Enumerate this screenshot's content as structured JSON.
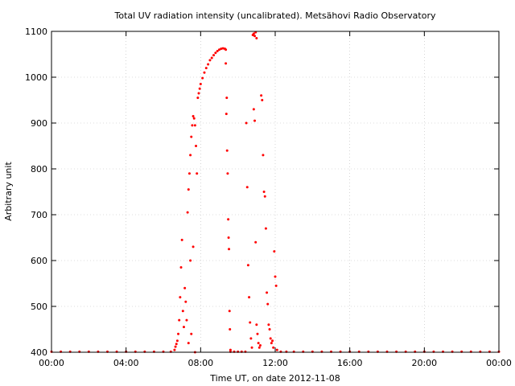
{
  "chart_data": {
    "type": "scatter",
    "title": "Total UV radiation intensity (uncalibrated). Metsähovi Radio Observatory",
    "xlabel": "Time UT, on date 2012-11-08",
    "ylabel": "Arbitrary unit",
    "x_unit": "hours UT",
    "xlim": [
      0,
      24
    ],
    "ylim": [
      400,
      1100
    ],
    "x_ticks": [
      0,
      4,
      8,
      12,
      16,
      20,
      24
    ],
    "x_tick_labels": [
      "00:00",
      "04:00",
      "08:00",
      "12:00",
      "16:00",
      "20:00",
      "00:00"
    ],
    "y_ticks": [
      400,
      500,
      600,
      700,
      800,
      900,
      1000,
      1100
    ],
    "y_tick_labels": [
      "400",
      "500",
      "600",
      "700",
      "800",
      "900",
      "1000",
      "1100"
    ],
    "grid": true,
    "series": [
      {
        "color": "#ff0000",
        "points": [
          [
            0.0,
            401
          ],
          [
            0.5,
            401
          ],
          [
            1.0,
            401
          ],
          [
            1.5,
            401
          ],
          [
            2.0,
            401
          ],
          [
            2.5,
            401
          ],
          [
            3.0,
            401
          ],
          [
            3.5,
            401
          ],
          [
            4.0,
            401
          ],
          [
            4.5,
            401
          ],
          [
            5.0,
            401
          ],
          [
            5.5,
            401
          ],
          [
            6.0,
            401
          ],
          [
            6.4,
            401
          ],
          [
            6.6,
            405
          ],
          [
            6.65,
            412
          ],
          [
            6.7,
            418
          ],
          [
            6.75,
            425
          ],
          [
            6.8,
            440
          ],
          [
            6.85,
            470
          ],
          [
            6.9,
            520
          ],
          [
            6.95,
            585
          ],
          [
            7.0,
            645
          ],
          [
            7.05,
            490
          ],
          [
            7.1,
            455
          ],
          [
            7.15,
            540
          ],
          [
            7.2,
            510
          ],
          [
            7.25,
            470
          ],
          [
            7.3,
            705
          ],
          [
            7.35,
            755
          ],
          [
            7.4,
            790
          ],
          [
            7.45,
            830
          ],
          [
            7.5,
            870
          ],
          [
            7.55,
            895
          ],
          [
            7.6,
            915
          ],
          [
            7.65,
            910
          ],
          [
            7.7,
            895
          ],
          [
            7.75,
            850
          ],
          [
            7.8,
            790
          ],
          [
            7.6,
            630
          ],
          [
            7.5,
            440
          ],
          [
            7.35,
            420
          ],
          [
            7.45,
            600
          ],
          [
            7.7,
            400
          ],
          [
            7.85,
            955
          ],
          [
            7.9,
            965
          ],
          [
            7.95,
            975
          ],
          [
            8.0,
            985
          ],
          [
            8.1,
            998
          ],
          [
            8.2,
            1010
          ],
          [
            8.3,
            1020
          ],
          [
            8.4,
            1028
          ],
          [
            8.5,
            1037
          ],
          [
            8.6,
            1042
          ],
          [
            8.7,
            1048
          ],
          [
            8.8,
            1053
          ],
          [
            8.9,
            1057
          ],
          [
            9.0,
            1060
          ],
          [
            9.1,
            1062
          ],
          [
            9.2,
            1063
          ],
          [
            9.3,
            1062
          ],
          [
            9.35,
            1060
          ],
          [
            9.35,
            1030
          ],
          [
            9.4,
            955
          ],
          [
            9.38,
            920
          ],
          [
            9.42,
            840
          ],
          [
            9.45,
            790
          ],
          [
            9.48,
            690
          ],
          [
            9.5,
            650
          ],
          [
            9.52,
            625
          ],
          [
            9.55,
            490
          ],
          [
            9.57,
            450
          ],
          [
            9.6,
            405
          ],
          [
            9.6,
            401
          ],
          [
            9.8,
            401
          ],
          [
            10.0,
            401
          ],
          [
            10.2,
            401
          ],
          [
            10.4,
            401
          ],
          [
            10.45,
            900
          ],
          [
            10.5,
            760
          ],
          [
            10.55,
            590
          ],
          [
            10.6,
            520
          ],
          [
            10.65,
            465
          ],
          [
            10.7,
            430
          ],
          [
            10.75,
            410
          ],
          [
            10.8,
            1092
          ],
          [
            10.85,
            1095
          ],
          [
            10.9,
            1090
          ],
          [
            10.95,
            1098
          ],
          [
            11.0,
            1085
          ],
          [
            10.85,
            930
          ],
          [
            10.9,
            905
          ],
          [
            10.95,
            640
          ],
          [
            11.0,
            460
          ],
          [
            11.05,
            440
          ],
          [
            11.1,
            420
          ],
          [
            11.15,
            410
          ],
          [
            11.2,
            415
          ],
          [
            11.25,
            960
          ],
          [
            11.3,
            950
          ],
          [
            11.35,
            830
          ],
          [
            11.4,
            750
          ],
          [
            11.45,
            740
          ],
          [
            11.5,
            670
          ],
          [
            11.55,
            530
          ],
          [
            11.6,
            505
          ],
          [
            11.65,
            460
          ],
          [
            11.7,
            450
          ],
          [
            11.75,
            430
          ],
          [
            11.8,
            420
          ],
          [
            11.85,
            425
          ],
          [
            11.9,
            410
          ],
          [
            11.95,
            620
          ],
          [
            12.0,
            565
          ],
          [
            12.05,
            545
          ],
          [
            12.1,
            405
          ],
          [
            12.3,
            401
          ],
          [
            12.6,
            401
          ],
          [
            13.0,
            401
          ],
          [
            13.5,
            401
          ],
          [
            14.0,
            401
          ],
          [
            14.5,
            401
          ],
          [
            15.0,
            401
          ],
          [
            15.5,
            401
          ],
          [
            16.0,
            401
          ],
          [
            16.5,
            401
          ],
          [
            17.0,
            401
          ],
          [
            17.5,
            401
          ],
          [
            18.0,
            401
          ],
          [
            18.5,
            401
          ],
          [
            19.0,
            401
          ],
          [
            19.5,
            401
          ],
          [
            20.0,
            401
          ],
          [
            20.5,
            401
          ],
          [
            21.0,
            401
          ],
          [
            21.5,
            401
          ],
          [
            22.0,
            401
          ],
          [
            22.5,
            401
          ],
          [
            23.0,
            401
          ],
          [
            23.5,
            401
          ],
          [
            24.0,
            401
          ]
        ]
      }
    ]
  }
}
